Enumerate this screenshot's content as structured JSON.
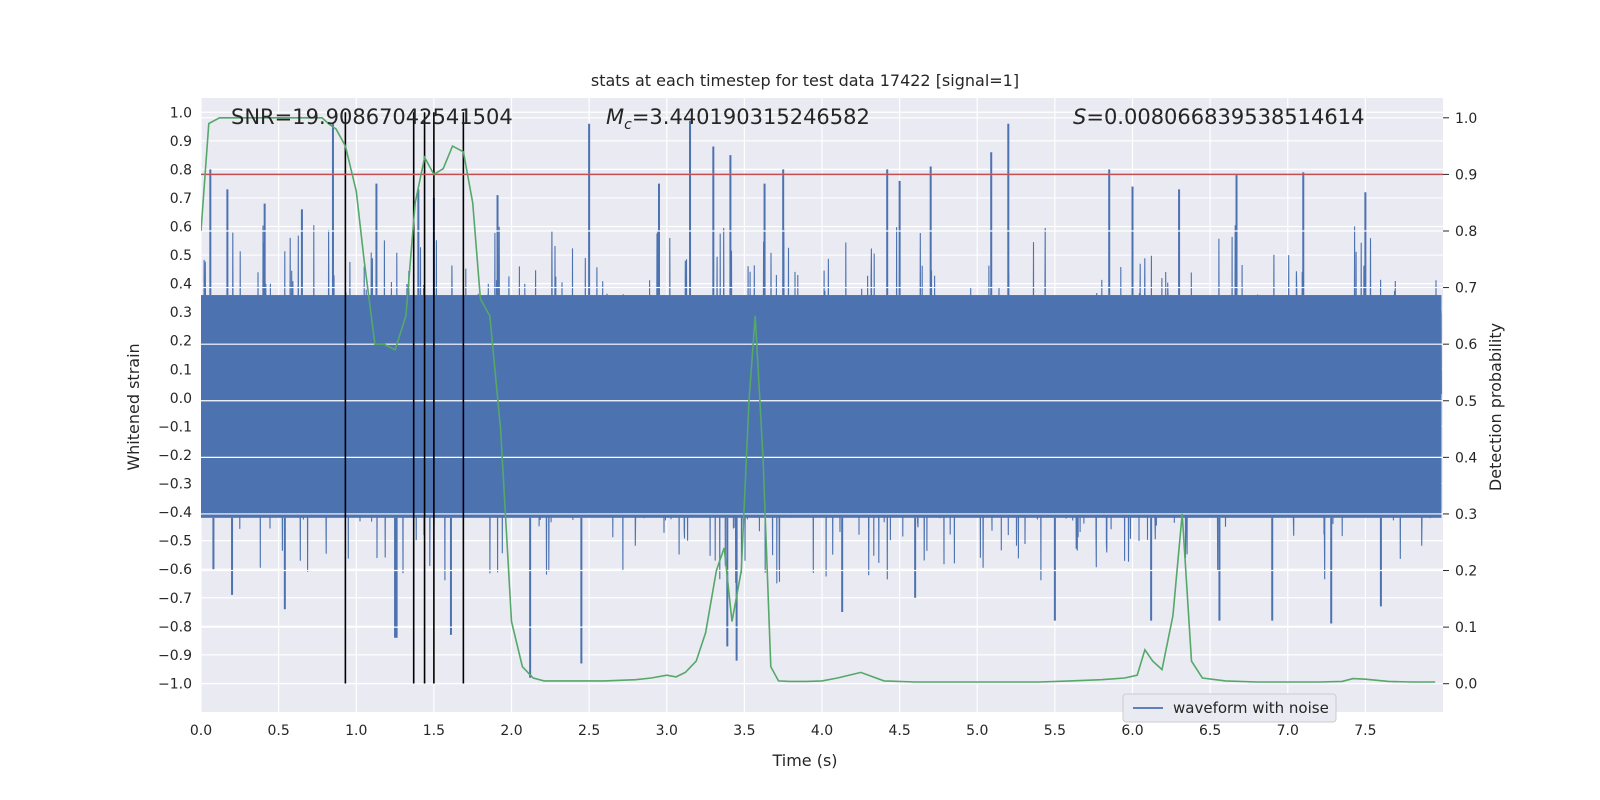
{
  "chart_data": {
    "type": "line",
    "title": "stats at each timestep for test data 17422 [signal=1]",
    "xlabel": "Time (s)",
    "ylabel_left": "Whitened strain",
    "ylabel_right": "Detection probability",
    "xlim": [
      0.0,
      8.0
    ],
    "ylim_left": [
      -1.1,
      1.05
    ],
    "ylim_right": [
      -0.05,
      1.035
    ],
    "x_ticks": [
      0.0,
      0.5,
      1.0,
      1.5,
      2.0,
      2.5,
      3.0,
      3.5,
      4.0,
      4.5,
      5.0,
      5.5,
      6.0,
      6.5,
      7.0,
      7.5
    ],
    "x_tick_labels": [
      "0.0",
      "0.5",
      "1.0",
      "1.5",
      "2.0",
      "2.5",
      "3.0",
      "3.5",
      "4.0",
      "4.5",
      "5.0",
      "5.5",
      "6.0",
      "6.5",
      "7.0",
      "7.5"
    ],
    "y_left_ticks": [
      -1.0,
      -0.9,
      -0.8,
      -0.7,
      -0.6,
      -0.5,
      -0.4,
      -0.3,
      -0.2,
      -0.1,
      0.0,
      0.1,
      0.2,
      0.3,
      0.4,
      0.5,
      0.6,
      0.7,
      0.8,
      0.9,
      1.0
    ],
    "y_left_tick_labels": [
      "−1.0",
      "−0.9",
      "−0.8",
      "−0.7",
      "−0.6",
      "−0.5",
      "−0.4",
      "−0.3",
      "−0.2",
      "−0.1",
      "0.0",
      "0.1",
      "0.2",
      "0.3",
      "0.4",
      "0.5",
      "0.6",
      "0.7",
      "0.8",
      "0.9",
      "1.0"
    ],
    "y_right_ticks": [
      0.0,
      0.1,
      0.2,
      0.3,
      0.4,
      0.5,
      0.6,
      0.7,
      0.8,
      0.9,
      1.0
    ],
    "y_right_tick_labels": [
      "0.0",
      "0.1",
      "0.2",
      "0.3",
      "0.4",
      "0.5",
      "0.6",
      "0.7",
      "0.8",
      "0.9",
      "1.0"
    ],
    "annotations": {
      "snr": "SNR=19.90867042541504",
      "mc_symbol": "M",
      "mc_subscript": "c",
      "mc_value": "=3.440190315246582",
      "s_symbol": "S",
      "s_value": "=0.008066839538514614"
    },
    "threshold": {
      "value": 0.9,
      "axis": "right",
      "color": "#c44e52"
    },
    "event_markers": {
      "x": [
        0.93,
        1.37,
        1.44,
        1.5,
        1.69
      ],
      "y_range": [
        -1.0,
        1.0
      ],
      "color": "#000000"
    },
    "waveform_series": {
      "name": "waveform with noise",
      "color": "#4c72b0",
      "x_range": [
        0.0,
        7.99
      ],
      "band_low": -0.42,
      "band_high": 0.36,
      "spikes": [
        [
          0.06,
          0.8
        ],
        [
          0.08,
          -0.6
        ],
        [
          0.17,
          0.73
        ],
        [
          0.2,
          -0.69
        ],
        [
          0.41,
          0.68
        ],
        [
          0.54,
          -0.74
        ],
        [
          0.65,
          0.66
        ],
        [
          0.85,
          0.96
        ],
        [
          1.13,
          0.75
        ],
        [
          1.25,
          -0.84
        ],
        [
          1.26,
          -0.84
        ],
        [
          1.4,
          0.73
        ],
        [
          1.5,
          0.7
        ],
        [
          1.61,
          -0.83
        ],
        [
          1.91,
          0.71
        ],
        [
          2.12,
          -0.98
        ],
        [
          2.45,
          -0.93
        ],
        [
          2.5,
          0.96
        ],
        [
          2.95,
          0.75
        ],
        [
          3.15,
          0.97
        ],
        [
          3.3,
          0.88
        ],
        [
          3.39,
          -0.87
        ],
        [
          3.41,
          0.85
        ],
        [
          3.45,
          -0.92
        ],
        [
          3.63,
          0.75
        ],
        [
          3.75,
          0.8
        ],
        [
          4.13,
          -0.75
        ],
        [
          4.42,
          0.8
        ],
        [
          4.5,
          0.76
        ],
        [
          4.6,
          -0.7
        ],
        [
          4.7,
          0.81
        ],
        [
          5.09,
          0.86
        ],
        [
          5.2,
          0.96
        ],
        [
          5.5,
          -0.78
        ],
        [
          5.85,
          0.8
        ],
        [
          6.0,
          0.74
        ],
        [
          6.12,
          -0.78
        ],
        [
          6.3,
          0.73
        ],
        [
          6.56,
          -0.78
        ],
        [
          6.67,
          0.78
        ],
        [
          6.9,
          -0.78
        ],
        [
          7.1,
          0.79
        ],
        [
          7.28,
          -0.79
        ],
        [
          7.5,
          0.72
        ],
        [
          7.6,
          -0.73
        ]
      ]
    },
    "probability_series": {
      "name": "detection probability",
      "color": "#55a868",
      "x": [
        0.0,
        0.05,
        0.12,
        0.2,
        0.3,
        0.4,
        0.5,
        0.6,
        0.7,
        0.78,
        0.82,
        0.87,
        0.93,
        1.0,
        1.05,
        1.12,
        1.18,
        1.25,
        1.32,
        1.38,
        1.44,
        1.5,
        1.56,
        1.62,
        1.69,
        1.75,
        1.8,
        1.86,
        1.93,
        2.0,
        2.07,
        2.14,
        2.21,
        2.3,
        2.4,
        2.5,
        2.6,
        2.7,
        2.8,
        2.9,
        3.0,
        3.06,
        3.12,
        3.19,
        3.25,
        3.32,
        3.37,
        3.42,
        3.48,
        3.53,
        3.57,
        3.62,
        3.67,
        3.72,
        3.79,
        3.9,
        4.0,
        4.1,
        4.25,
        4.4,
        4.6,
        4.8,
        5.0,
        5.2,
        5.4,
        5.6,
        5.8,
        5.95,
        6.03,
        6.08,
        6.13,
        6.19,
        6.26,
        6.32,
        6.38,
        6.45,
        6.6,
        6.8,
        7.0,
        7.2,
        7.35,
        7.42,
        7.5,
        7.65,
        7.8,
        7.95
      ],
      "y": [
        0.8,
        0.99,
        1.0,
        1.0,
        1.0,
        1.0,
        1.0,
        1.0,
        1.0,
        1.0,
        0.99,
        0.98,
        0.95,
        0.87,
        0.75,
        0.6,
        0.6,
        0.59,
        0.65,
        0.85,
        0.93,
        0.9,
        0.91,
        0.95,
        0.94,
        0.85,
        0.68,
        0.65,
        0.45,
        0.11,
        0.03,
        0.01,
        0.005,
        0.005,
        0.005,
        0.005,
        0.005,
        0.006,
        0.007,
        0.01,
        0.015,
        0.012,
        0.02,
        0.04,
        0.09,
        0.2,
        0.24,
        0.11,
        0.2,
        0.5,
        0.65,
        0.4,
        0.03,
        0.005,
        0.004,
        0.004,
        0.005,
        0.01,
        0.02,
        0.005,
        0.003,
        0.003,
        0.003,
        0.003,
        0.003,
        0.005,
        0.007,
        0.01,
        0.015,
        0.06,
        0.04,
        0.025,
        0.12,
        0.3,
        0.04,
        0.01,
        0.005,
        0.003,
        0.003,
        0.003,
        0.004,
        0.009,
        0.008,
        0.004,
        0.003,
        0.003
      ]
    },
    "legend": {
      "label": "waveform with noise",
      "position": "lower-right"
    }
  }
}
